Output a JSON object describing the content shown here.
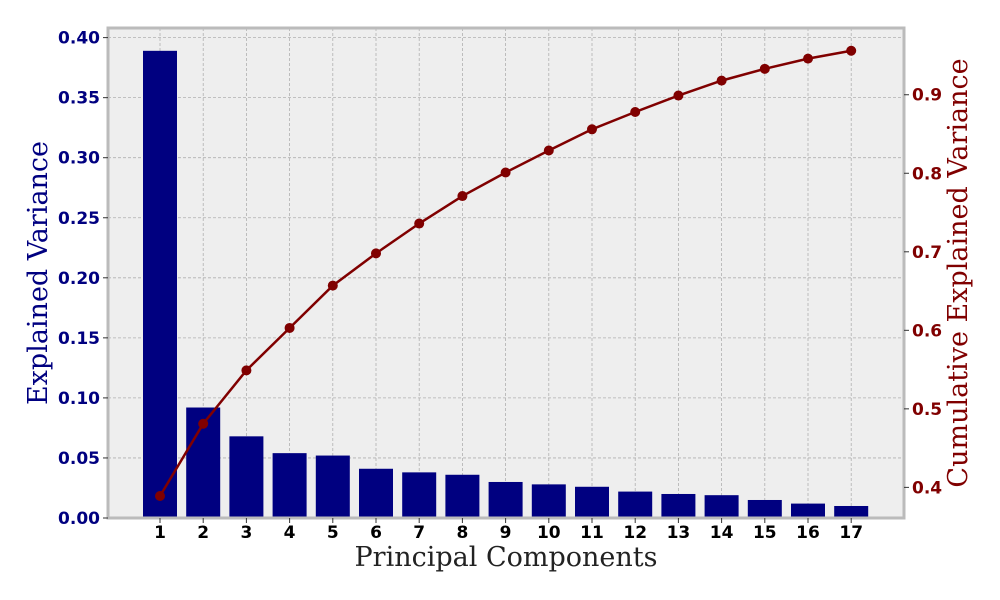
{
  "chart_data": {
    "type": "bar",
    "title": "",
    "xlabel": "Principal Components",
    "ylabel": "Explained Variance",
    "y2label": "Cumulative Explained Variance",
    "categories": [
      "1",
      "2",
      "3",
      "4",
      "5",
      "6",
      "7",
      "8",
      "9",
      "10",
      "11",
      "12",
      "13",
      "14",
      "15",
      "16",
      "17"
    ],
    "series": [
      {
        "type": "bar",
        "axis": "left",
        "values": [
          0.389,
          0.092,
          0.068,
          0.054,
          0.052,
          0.041,
          0.038,
          0.036,
          0.03,
          0.028,
          0.026,
          0.022,
          0.02,
          0.019,
          0.015,
          0.012,
          0.01
        ]
      },
      {
        "type": "line",
        "axis": "right",
        "values": [
          0.389,
          0.481,
          0.549,
          0.603,
          0.657,
          0.698,
          0.736,
          0.771,
          0.801,
          0.829,
          0.856,
          0.878,
          0.899,
          0.918,
          0.933,
          0.946,
          0.956
        ]
      }
    ],
    "ylim": [
      0,
      0.408
    ],
    "yticks": [
      "0.00",
      "0.05",
      "0.10",
      "0.15",
      "0.20",
      "0.25",
      "0.30",
      "0.35",
      "0.40"
    ],
    "y2lim": [
      0.361,
      0.985
    ],
    "y2ticks": [
      "0.4",
      "0.5",
      "0.6",
      "0.7",
      "0.8",
      "0.9"
    ],
    "grid": true,
    "colors": {
      "bar": "#000080",
      "line": "#800000",
      "plot_bg": "#eeeeee",
      "grid": "#b0b0b0",
      "frame": "#bbbbbb"
    }
  }
}
